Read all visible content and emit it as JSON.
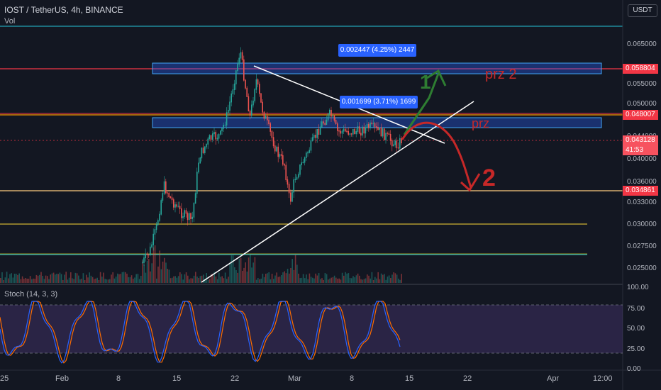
{
  "header": {
    "symbol": "IOST / TetherUS, 4h, BINANCE",
    "vol_label": "Vol",
    "currency": "USDT"
  },
  "stoch": {
    "label": "Stoch (14, 3, 3)",
    "ticks": [
      "100.00",
      "75.00",
      "50.00",
      "25.00",
      "0.00"
    ]
  },
  "price_axis": {
    "ticks": [
      "0.065000",
      "0.055000",
      "0.050000",
      "0.044000",
      "0.040000",
      "0.036000",
      "0.033000",
      "0.030000",
      "0.027500",
      "0.025000"
    ]
  },
  "badges": [
    {
      "label": "0.058804",
      "color": "#f23645"
    },
    {
      "label": "0.048007",
      "color": "#f23645"
    },
    {
      "label": "0.043128",
      "color": "#f7525f"
    },
    {
      "label": "41:53",
      "color": "#f7525f"
    },
    {
      "label": "0.034861",
      "color": "#f23645"
    }
  ],
  "time_axis": {
    "ticks": [
      "25",
      "Feb",
      "8",
      "15",
      "22",
      "Mar",
      "8",
      "15",
      "22",
      "Apr",
      "12:00"
    ]
  },
  "measures": [
    {
      "label": "0.002447 (4.25%) 2447"
    },
    {
      "label": "0.001699 (3.71%) 1699"
    }
  ],
  "annotations": {
    "prz2": "prz 2",
    "prz": "prz",
    "one": "1",
    "two": "2"
  },
  "colors": {
    "bg": "#131722",
    "up": "#26a69a",
    "down": "#ef5350",
    "stoch_k": "#2962ff",
    "stoch_d": "#ff6d00",
    "stoch_bg": "#7e57c2"
  },
  "chart_data": {
    "type": "candlestick",
    "title": "IOST / TetherUS, 4h, BINANCE",
    "last_price": 0.043128,
    "levels": [
      0.058804,
      0.048007,
      0.034861
    ],
    "ylim": [
      0.024,
      0.069
    ]
  }
}
